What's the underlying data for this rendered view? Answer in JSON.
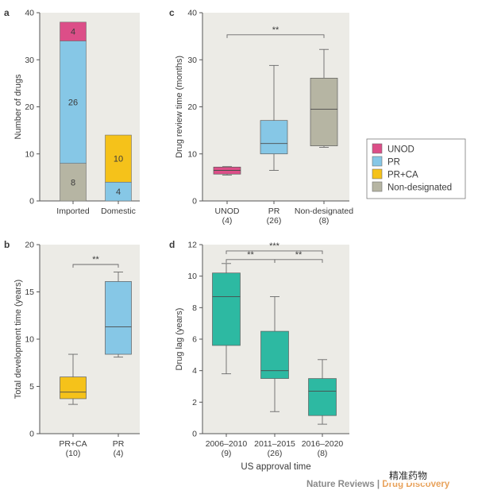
{
  "colors": {
    "UNOD": "#dc4e88",
    "PR": "#86c7e6",
    "PR+CA": "#f5c21a",
    "Non-designated": "#b6b5a3",
    "teal": "#2db9a2",
    "plot_bg": "#ecebe6"
  },
  "legend": {
    "items": [
      {
        "label": "UNOD",
        "color_key": "UNOD"
      },
      {
        "label": "PR",
        "color_key": "PR"
      },
      {
        "label": "PR+CA",
        "color_key": "PR+CA"
      },
      {
        "label": "Non-designated",
        "color_key": "Non-designated"
      }
    ]
  },
  "footer": {
    "journal": "Nature Reviews",
    "separator": " | ",
    "section": "Drug Discovery",
    "watermark": "精准药物"
  },
  "chart_data": [
    {
      "panel": "a",
      "type": "bar",
      "stacked": true,
      "ylabel": "Number of drugs",
      "ylim": [
        0,
        40
      ],
      "yticks": [
        0,
        10,
        20,
        30,
        40
      ],
      "categories": [
        "Imported",
        "Domestic"
      ],
      "series": [
        {
          "name": "Non-designated",
          "values": [
            8,
            0
          ]
        },
        {
          "name": "PR",
          "values": [
            26,
            4
          ]
        },
        {
          "name": "PR+CA",
          "values": [
            0,
            10
          ]
        },
        {
          "name": "UNOD",
          "values": [
            4,
            0
          ]
        }
      ],
      "data_labels": [
        {
          "category": "Imported",
          "series": "Non-designated",
          "text": "8"
        },
        {
          "category": "Imported",
          "series": "PR",
          "text": "26"
        },
        {
          "category": "Imported",
          "series": "UNOD",
          "text": "4"
        },
        {
          "category": "Domestic",
          "series": "PR",
          "text": "4"
        },
        {
          "category": "Domestic",
          "series": "PR+CA",
          "text": "10"
        }
      ]
    },
    {
      "panel": "c",
      "type": "box",
      "ylabel": "Drug review time (months)",
      "ylim": [
        0,
        40
      ],
      "yticks": [
        0,
        10,
        20,
        30,
        40
      ],
      "groups": [
        {
          "label": "UNOD",
          "n": "(4)",
          "color_key": "UNOD",
          "min": 5.5,
          "q1": 5.7,
          "median": 6.5,
          "q3": 7.2,
          "max": 7.3
        },
        {
          "label": "PR",
          "n": "(26)",
          "color_key": "PR",
          "min": 6.5,
          "q1": 10.0,
          "median": 12.2,
          "q3": 17.1,
          "max": 28.8
        },
        {
          "label": "Non-designated",
          "n": "(8)",
          "color_key": "Non-designated",
          "min": 11.4,
          "q1": 11.7,
          "median": 19.5,
          "q3": 26.1,
          "max": 32.2
        }
      ],
      "significance": [
        {
          "from": 0,
          "to": 2,
          "y": 35.3,
          "label": "**"
        }
      ]
    },
    {
      "panel": "b",
      "type": "box",
      "ylabel": "Total development time (years)",
      "ylim": [
        0,
        20
      ],
      "yticks": [
        0,
        5,
        10,
        15,
        20
      ],
      "groups": [
        {
          "label": "PR+CA",
          "n": "(10)",
          "color_key": "PR+CA",
          "min": 3.1,
          "q1": 3.7,
          "median": 4.4,
          "q3": 6.0,
          "max": 8.4
        },
        {
          "label": "PR",
          "n": "(4)",
          "color_key": "PR",
          "min": 8.1,
          "q1": 8.4,
          "median": 11.3,
          "q3": 16.1,
          "max": 17.1
        }
      ],
      "significance": [
        {
          "from": 0,
          "to": 1,
          "y": 17.9,
          "label": "**"
        }
      ]
    },
    {
      "panel": "d",
      "type": "box",
      "ylabel": "Drug lag (years)",
      "xlabel": "US approval time",
      "ylim": [
        0,
        12
      ],
      "yticks": [
        0,
        2,
        4,
        6,
        8,
        10,
        12
      ],
      "groups": [
        {
          "label": "2006–2010",
          "n": "(9)",
          "color_key": "teal",
          "min": 3.8,
          "q1": 5.6,
          "median": 8.7,
          "q3": 10.2,
          "max": 10.8
        },
        {
          "label": "2011–2015",
          "n": "(26)",
          "color_key": "teal",
          "min": 1.4,
          "q1": 3.5,
          "median": 4.0,
          "q3": 6.5,
          "max": 8.7
        },
        {
          "label": "2016–2020",
          "n": "(8)",
          "color_key": "teal",
          "min": 0.6,
          "q1": 1.15,
          "median": 2.7,
          "q3": 3.5,
          "max": 4.7
        }
      ],
      "significance": [
        {
          "from": 0,
          "to": 2,
          "y": 11.6,
          "label": "***"
        },
        {
          "from": 0,
          "to": 1,
          "y": 11.05,
          "label": "**"
        },
        {
          "from": 1,
          "to": 2,
          "y": 11.05,
          "label": "**"
        }
      ]
    }
  ]
}
